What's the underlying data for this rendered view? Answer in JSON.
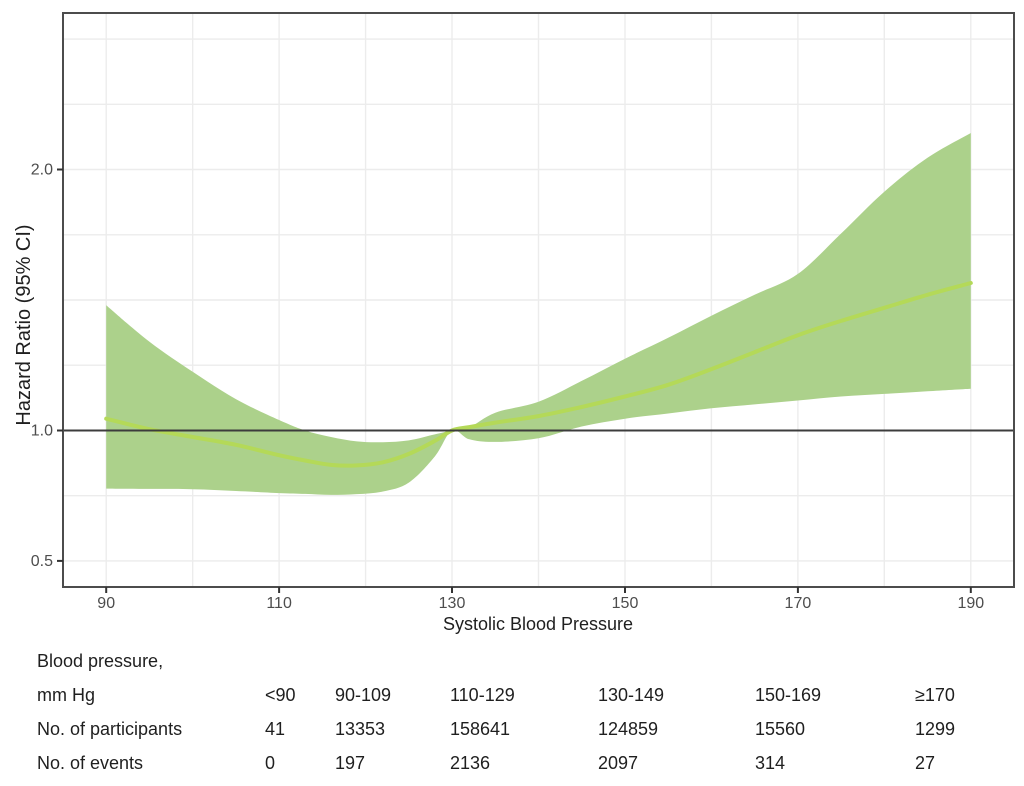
{
  "chart_data": {
    "type": "line",
    "title": "",
    "xlabel": "Systolic Blood Pressure",
    "ylabel": "Hazard Ratio (95% CI)",
    "xlim": [
      85,
      195
    ],
    "ylim": [
      0.4,
      2.6
    ],
    "x_ticks": [
      90,
      110,
      130,
      150,
      170,
      190
    ],
    "y_ticks": [
      0.5,
      1.0,
      2.0
    ],
    "y_tick_labels": [
      "0.5",
      "1.0",
      "2.0"
    ],
    "x_grid_step": 10,
    "y_grid_step": 0.25,
    "grid": true,
    "legend": "none",
    "reference_line_y": 1.0,
    "reference_x": 130,
    "x": [
      90,
      95,
      100,
      105,
      110,
      113,
      116,
      119,
      122,
      125,
      128,
      130,
      132,
      135,
      140,
      145,
      150,
      155,
      160,
      165,
      170,
      175,
      180,
      185,
      190
    ],
    "series": [
      {
        "name": "hazard-ratio",
        "values": [
          1.045,
          1.005,
          0.975,
          0.945,
          0.905,
          0.885,
          0.868,
          0.866,
          0.878,
          0.91,
          0.96,
          1.0,
          1.013,
          1.03,
          1.055,
          1.09,
          1.13,
          1.175,
          1.235,
          1.3,
          1.365,
          1.42,
          1.47,
          1.52,
          1.565
        ]
      }
    ],
    "ci_upper": [
      1.48,
      1.34,
      1.225,
      1.12,
      1.04,
      1.0,
      0.975,
      0.958,
      0.955,
      0.962,
      0.985,
      1.0,
      1.012,
      1.068,
      1.11,
      1.19,
      1.275,
      1.355,
      1.44,
      1.52,
      1.6,
      1.755,
      1.915,
      2.045,
      2.14
    ],
    "ci_lower": [
      0.777,
      0.776,
      0.775,
      0.768,
      0.76,
      0.757,
      0.753,
      0.756,
      0.766,
      0.8,
      0.9,
      1.0,
      0.966,
      0.956,
      0.97,
      1.015,
      1.045,
      1.065,
      1.085,
      1.1,
      1.115,
      1.13,
      1.14,
      1.15,
      1.16
    ],
    "colors": {
      "band": "#acd18b",
      "line": "#b4d958",
      "reference": "#3c3c3c",
      "grid": "#ececec",
      "border": "#4c4c4c",
      "tick": "#333333",
      "tick_text": "#4d4d4d",
      "axis_text": "#1f1f1f"
    }
  },
  "table": {
    "rows": [
      {
        "label": "Blood pressure,",
        "values": []
      },
      {
        "label": "mm Hg",
        "values": [
          "<90",
          "90-109",
          "110-129",
          "130-149",
          "150-169",
          "≥170"
        ]
      },
      {
        "label": "No. of participants",
        "values": [
          "41",
          "13353",
          "158641",
          "124859",
          "15560",
          "1299"
        ]
      },
      {
        "label": "No. of events",
        "values": [
          "0",
          "197",
          "2136",
          "2097",
          "314",
          "27"
        ]
      }
    ]
  }
}
